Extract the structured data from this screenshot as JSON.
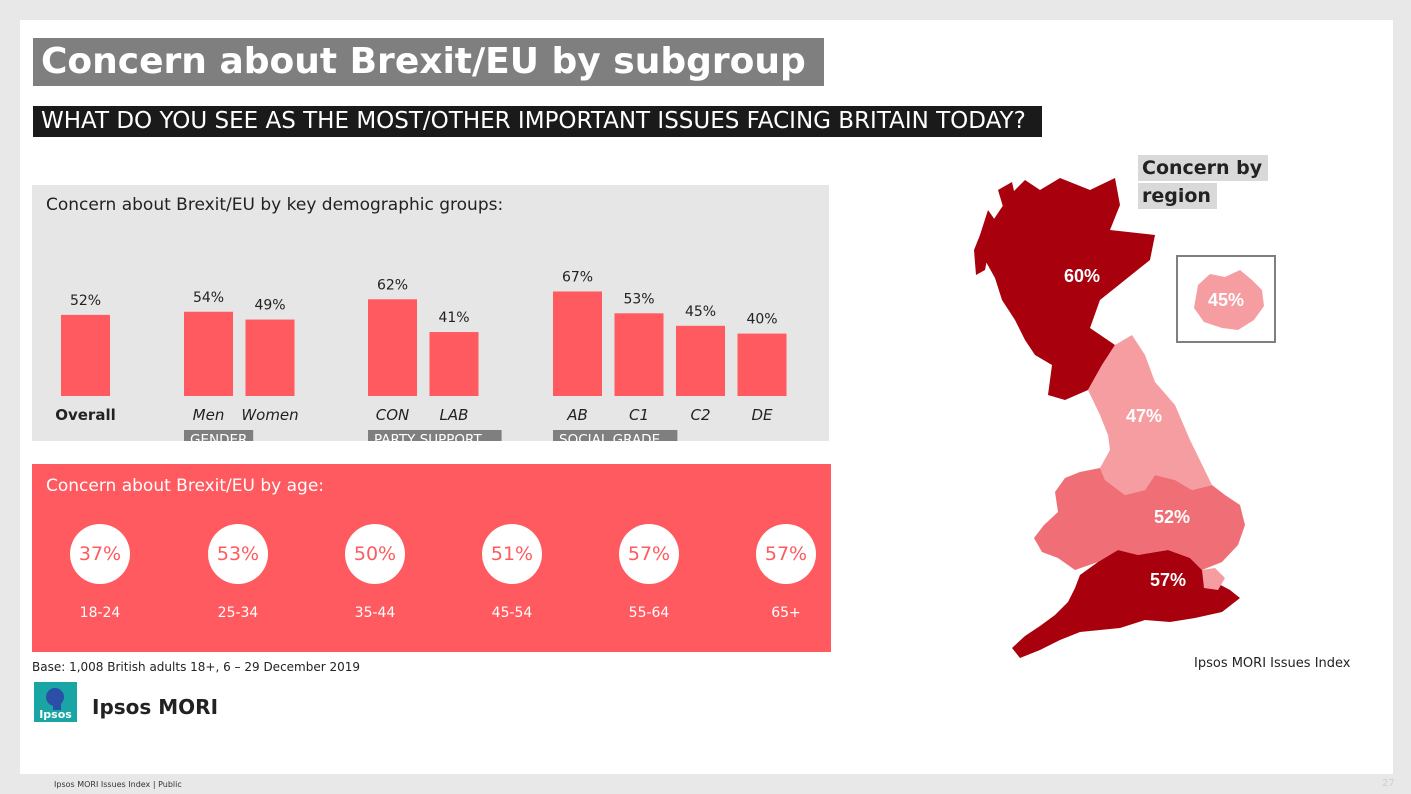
{
  "title": "Concern about Brexit/EU by subgroup",
  "subtitle": "WHAT DO YOU SEE AS THE MOST/OTHER IMPORTANT ISSUES FACING BRITAIN TODAY?",
  "demographics": {
    "heading": "Concern about Brexit/EU by key demographic groups:",
    "groups": [
      {
        "label": "",
        "bars": [
          {
            "category": "Overall",
            "value": 52,
            "display": "52%"
          }
        ]
      },
      {
        "label": "GENDER",
        "bars": [
          {
            "category": "Men",
            "value": 54,
            "display": "54%"
          },
          {
            "category": "Women",
            "value": 49,
            "display": "49%"
          }
        ]
      },
      {
        "label": "PARTY SUPPORT",
        "bars": [
          {
            "category": "CON",
            "value": 62,
            "display": "62%"
          },
          {
            "category": "LAB",
            "value": 41,
            "display": "41%"
          }
        ]
      },
      {
        "label": "SOCIAL GRADE",
        "bars": [
          {
            "category": "AB",
            "value": 67,
            "display": "67%"
          },
          {
            "category": "C1",
            "value": 53,
            "display": "53%"
          },
          {
            "category": "C2",
            "value": 45,
            "display": "45%"
          },
          {
            "category": "DE",
            "value": 40,
            "display": "40%"
          }
        ]
      }
    ]
  },
  "age": {
    "heading": "Concern about Brexit/EU by age:",
    "items": [
      {
        "label": "18-24",
        "value": "37%"
      },
      {
        "label": "25-34",
        "value": "53%"
      },
      {
        "label": "35-44",
        "value": "50%"
      },
      {
        "label": "45-54",
        "value": "51%"
      },
      {
        "label": "55-64",
        "value": "57%"
      },
      {
        "label": "65+",
        "value": "57%"
      }
    ]
  },
  "base_note": "Base: 1,008 British adults 18+, 6 – 29 December 2019",
  "brand": {
    "logo_text": "Ipsos",
    "name": "Ipsos MORI"
  },
  "map": {
    "title_line1": "Concern by",
    "title_line2": "region",
    "source": "Ipsos MORI Issues Index",
    "regions": [
      {
        "id": "scotland",
        "value": "60%",
        "color": "#a8000d"
      },
      {
        "id": "north",
        "value": "47%",
        "color": "#f59da1"
      },
      {
        "id": "midlands",
        "value": "52%",
        "color": "#f06e75"
      },
      {
        "id": "south",
        "value": "57%",
        "color": "#a8000d"
      },
      {
        "id": "london",
        "value": "45%",
        "color": "#f59da1"
      }
    ]
  },
  "footer": "Ipsos MORI Issues Index | Public",
  "page_number": "27",
  "colors": {
    "bar": "#ff5a5f",
    "panel": "#e6e6e6",
    "group_label_bg": "#7f7f7f"
  },
  "chart_data": {
    "type": "bar",
    "categories": [
      "Overall",
      "Men",
      "Women",
      "CON",
      "LAB",
      "AB",
      "C1",
      "C2",
      "DE"
    ],
    "values": [
      52,
      54,
      49,
      62,
      41,
      67,
      53,
      45,
      40
    ],
    "title": "Concern about Brexit/EU by key demographic groups:",
    "ylabel": "",
    "ylim": [
      0,
      100
    ]
  }
}
